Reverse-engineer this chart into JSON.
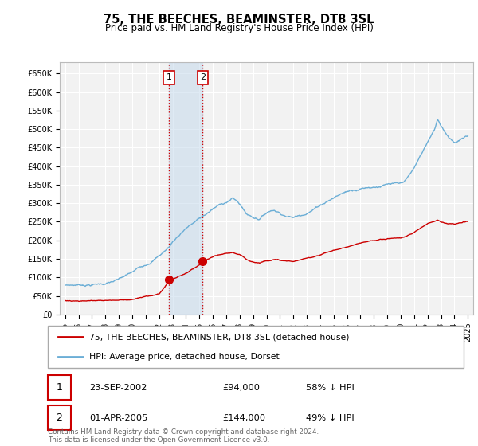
{
  "title": "75, THE BEECHES, BEAMINSTER, DT8 3SL",
  "subtitle": "Price paid vs. HM Land Registry's House Price Index (HPI)",
  "title_fontsize": 10.5,
  "subtitle_fontsize": 8.5,
  "background_color": "#ffffff",
  "plot_bg_color": "#f2f2f2",
  "ylim": [
    0,
    680000
  ],
  "yticks": [
    0,
    50000,
    100000,
    150000,
    200000,
    250000,
    300000,
    350000,
    400000,
    450000,
    500000,
    550000,
    600000,
    650000
  ],
  "ytick_labels": [
    "£0",
    "£50K",
    "£100K",
    "£150K",
    "£200K",
    "£250K",
    "£300K",
    "£350K",
    "£400K",
    "£450K",
    "£500K",
    "£550K",
    "£600K",
    "£650K"
  ],
  "hpi_color": "#6baed6",
  "property_color": "#cc0000",
  "marker_color": "#cc0000",
  "shade_color": "#c6d9ec",
  "shade_alpha": 0.55,
  "sale1_year": 2002.73,
  "sale1_price": 94000,
  "sale2_year": 2005.25,
  "sale2_price": 144000,
  "legend_label_property": "75, THE BEECHES, BEAMINSTER, DT8 3SL (detached house)",
  "legend_label_hpi": "HPI: Average price, detached house, Dorset",
  "table_entries": [
    {
      "num": "1",
      "date": "23-SEP-2002",
      "price": "£94,000",
      "hpi": "58% ↓ HPI"
    },
    {
      "num": "2",
      "date": "01-APR-2005",
      "price": "£144,000",
      "hpi": "49% ↓ HPI"
    }
  ],
  "footnote": "Contains HM Land Registry data © Crown copyright and database right 2024.\nThis data is licensed under the Open Government Licence v3.0.",
  "grid_color": "#ffffff",
  "spine_color": "#bbbbbb",
  "hpi_anchors": [
    [
      1995.0,
      78000
    ],
    [
      1996.0,
      80000
    ],
    [
      1997.0,
      83000
    ],
    [
      1998.0,
      87000
    ],
    [
      1999.0,
      96000
    ],
    [
      2000.0,
      112000
    ],
    [
      2001.0,
      135000
    ],
    [
      2002.0,
      162000
    ],
    [
      2002.73,
      185000
    ],
    [
      2003.0,
      200000
    ],
    [
      2004.0,
      240000
    ],
    [
      2005.0,
      265000
    ],
    [
      2005.25,
      270000
    ],
    [
      2006.0,
      290000
    ],
    [
      2007.0,
      310000
    ],
    [
      2007.5,
      320000
    ],
    [
      2008.0,
      305000
    ],
    [
      2008.5,
      278000
    ],
    [
      2009.0,
      270000
    ],
    [
      2009.5,
      268000
    ],
    [
      2010.0,
      285000
    ],
    [
      2010.5,
      295000
    ],
    [
      2011.0,
      288000
    ],
    [
      2011.5,
      282000
    ],
    [
      2012.0,
      278000
    ],
    [
      2012.5,
      285000
    ],
    [
      2013.0,
      295000
    ],
    [
      2013.5,
      305000
    ],
    [
      2014.0,
      318000
    ],
    [
      2014.5,
      330000
    ],
    [
      2015.0,
      340000
    ],
    [
      2015.5,
      350000
    ],
    [
      2016.0,
      358000
    ],
    [
      2016.5,
      365000
    ],
    [
      2017.0,
      370000
    ],
    [
      2017.5,
      375000
    ],
    [
      2018.0,
      378000
    ],
    [
      2018.5,
      382000
    ],
    [
      2019.0,
      385000
    ],
    [
      2019.5,
      383000
    ],
    [
      2020.0,
      380000
    ],
    [
      2020.5,
      395000
    ],
    [
      2021.0,
      420000
    ],
    [
      2021.5,
      455000
    ],
    [
      2022.0,
      490000
    ],
    [
      2022.5,
      520000
    ],
    [
      2022.75,
      550000
    ],
    [
      2023.0,
      535000
    ],
    [
      2023.5,
      510000
    ],
    [
      2024.0,
      495000
    ],
    [
      2024.5,
      505000
    ],
    [
      2025.0,
      510000
    ]
  ],
  "prop_anchors": [
    [
      1995.0,
      38000
    ],
    [
      1996.0,
      39000
    ],
    [
      1997.0,
      40000
    ],
    [
      1998.0,
      41500
    ],
    [
      1999.0,
      43000
    ],
    [
      2000.0,
      46000
    ],
    [
      2001.0,
      52000
    ],
    [
      2002.0,
      60000
    ],
    [
      2002.73,
      94000
    ],
    [
      2003.0,
      100000
    ],
    [
      2004.0,
      115000
    ],
    [
      2005.0,
      135000
    ],
    [
      2005.25,
      144000
    ],
    [
      2006.0,
      155000
    ],
    [
      2007.0,
      162000
    ],
    [
      2007.5,
      165000
    ],
    [
      2008.0,
      158000
    ],
    [
      2008.5,
      145000
    ],
    [
      2009.0,
      140000
    ],
    [
      2009.5,
      138000
    ],
    [
      2010.0,
      145000
    ],
    [
      2010.5,
      150000
    ],
    [
      2011.0,
      147000
    ],
    [
      2011.5,
      144000
    ],
    [
      2012.0,
      143000
    ],
    [
      2012.5,
      146000
    ],
    [
      2013.0,
      150000
    ],
    [
      2013.5,
      155000
    ],
    [
      2014.0,
      162000
    ],
    [
      2014.5,
      168000
    ],
    [
      2015.0,
      174000
    ],
    [
      2015.5,
      178000
    ],
    [
      2016.0,
      183000
    ],
    [
      2016.5,
      187000
    ],
    [
      2017.0,
      191000
    ],
    [
      2017.5,
      194000
    ],
    [
      2018.0,
      197000
    ],
    [
      2018.5,
      200000
    ],
    [
      2019.0,
      203000
    ],
    [
      2019.5,
      205000
    ],
    [
      2020.0,
      205000
    ],
    [
      2020.5,
      212000
    ],
    [
      2021.0,
      220000
    ],
    [
      2021.5,
      232000
    ],
    [
      2022.0,
      245000
    ],
    [
      2022.5,
      252000
    ],
    [
      2022.75,
      258000
    ],
    [
      2023.0,
      252000
    ],
    [
      2023.5,
      248000
    ],
    [
      2024.0,
      245000
    ],
    [
      2024.5,
      248000
    ],
    [
      2025.0,
      250000
    ]
  ],
  "xtick_years": [
    1995,
    1996,
    1997,
    1998,
    1999,
    2000,
    2001,
    2002,
    2003,
    2004,
    2005,
    2006,
    2007,
    2008,
    2009,
    2010,
    2011,
    2012,
    2013,
    2014,
    2015,
    2016,
    2017,
    2018,
    2019,
    2020,
    2021,
    2022,
    2023,
    2024,
    2025
  ]
}
